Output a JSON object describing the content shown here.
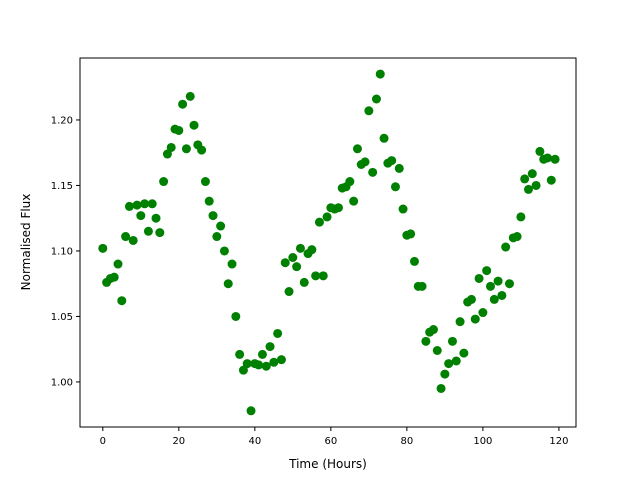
{
  "chart_data": {
    "type": "scatter",
    "title": "",
    "xlabel": "Time (Hours)",
    "ylabel": "Normalised Flux",
    "xlim": [
      -6,
      124.5
    ],
    "ylim": [
      0.9656,
      1.2473
    ],
    "xticks": [
      0,
      20,
      40,
      60,
      80,
      100,
      120
    ],
    "xtick_labels": [
      "0",
      "20",
      "40",
      "60",
      "80",
      "100",
      "120"
    ],
    "yticks": [
      1.0,
      1.05,
      1.1,
      1.15,
      1.2
    ],
    "ytick_labels": [
      "1.00",
      "1.05",
      "1.10",
      "1.15",
      "1.20"
    ],
    "grid": false,
    "marker_color": "#008000",
    "x": [
      0,
      1,
      2,
      3,
      4,
      5,
      6,
      7,
      8,
      9,
      10,
      11,
      12,
      13,
      14,
      15,
      16,
      17,
      18,
      19,
      20,
      21,
      22,
      23,
      24,
      25,
      26,
      27,
      28,
      29,
      30,
      31,
      32,
      33,
      34,
      35,
      36,
      37,
      38,
      39,
      40,
      41,
      42,
      43,
      44,
      45,
      46,
      47,
      48,
      49,
      50,
      51,
      52,
      53,
      54,
      55,
      56,
      57,
      58,
      59,
      60,
      61,
      62,
      63,
      64,
      65,
      66,
      67,
      68,
      69,
      70,
      71,
      72,
      73,
      74,
      75,
      76,
      77,
      78,
      79,
      80,
      81,
      82,
      83,
      84,
      85,
      86,
      87,
      88,
      89,
      90,
      91,
      92,
      93,
      94,
      95,
      96,
      97,
      98,
      99,
      100,
      101,
      102,
      103,
      104,
      105,
      106,
      107,
      108,
      109,
      110,
      111,
      112,
      113,
      114,
      115,
      116,
      117,
      118,
      119
    ],
    "y": [
      1.102,
      1.076,
      1.079,
      1.08,
      1.09,
      1.062,
      1.111,
      1.134,
      1.108,
      1.135,
      1.127,
      1.136,
      1.115,
      1.136,
      1.125,
      1.114,
      1.153,
      1.174,
      1.179,
      1.193,
      1.192,
      1.212,
      1.178,
      1.218,
      1.196,
      1.181,
      1.177,
      1.153,
      1.138,
      1.127,
      1.111,
      1.119,
      1.1,
      1.075,
      1.09,
      1.05,
      1.021,
      1.009,
      1.014,
      0.978,
      1.014,
      1.013,
      1.021,
      1.012,
      1.027,
      1.015,
      1.037,
      1.017,
      1.091,
      1.069,
      1.095,
      1.088,
      1.102,
      1.076,
      1.098,
      1.101,
      1.081,
      1.122,
      1.081,
      1.126,
      1.133,
      1.132,
      1.133,
      1.148,
      1.149,
      1.153,
      1.138,
      1.178,
      1.166,
      1.168,
      1.207,
      1.16,
      1.216,
      1.235,
      1.186,
      1.167,
      1.169,
      1.149,
      1.163,
      1.132,
      1.112,
      1.113,
      1.092,
      1.073,
      1.073,
      1.031,
      1.038,
      1.04,
      1.024,
      0.995,
      1.006,
      1.014,
      1.031,
      1.016,
      1.046,
      1.022,
      1.061,
      1.063,
      1.048,
      1.079,
      1.053,
      1.085,
      1.073,
      1.063,
      1.077,
      1.066,
      1.103,
      1.075,
      1.11,
      1.111,
      1.126,
      1.155,
      1.147,
      1.159,
      1.15,
      1.176,
      1.17,
      1.171,
      1.154,
      1.17
    ]
  }
}
